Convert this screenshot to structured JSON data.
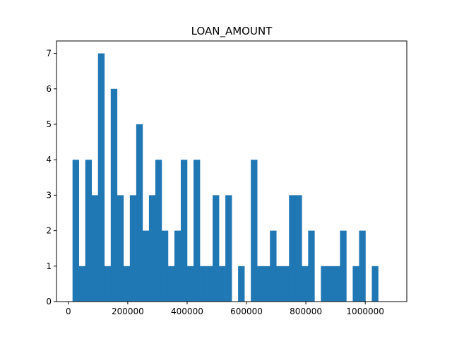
{
  "chart_data": {
    "type": "bar",
    "title": "LOAN_AMOUNT",
    "xlabel": "",
    "ylabel": "",
    "bin_start": 14000,
    "bin_width": 21450,
    "values": [
      4,
      1,
      4,
      3,
      7,
      1,
      6,
      3,
      1,
      3,
      5,
      2,
      3,
      4,
      2,
      1,
      2,
      4,
      1,
      4,
      1,
      1,
      3,
      1,
      3,
      0,
      1,
      0,
      4,
      1,
      1,
      2,
      1,
      1,
      3,
      3,
      1,
      2,
      0,
      1,
      1,
      1,
      2,
      0,
      1,
      2,
      0,
      1
    ],
    "xlim": [
      -40000,
      1140000
    ],
    "ylim": [
      0,
      7.35
    ],
    "xticks": [
      0,
      200000,
      400000,
      600000,
      800000,
      1000000
    ],
    "xtick_labels": [
      "0",
      "200000",
      "400000",
      "600000",
      "800000",
      "1000000"
    ],
    "yticks": [
      0,
      1,
      2,
      3,
      4,
      5,
      6,
      7
    ],
    "ytick_labels": [
      "0",
      "1",
      "2",
      "3",
      "4",
      "5",
      "6",
      "7"
    ],
    "bar_color": "#1f77b4",
    "grid": false,
    "legend": "none"
  }
}
